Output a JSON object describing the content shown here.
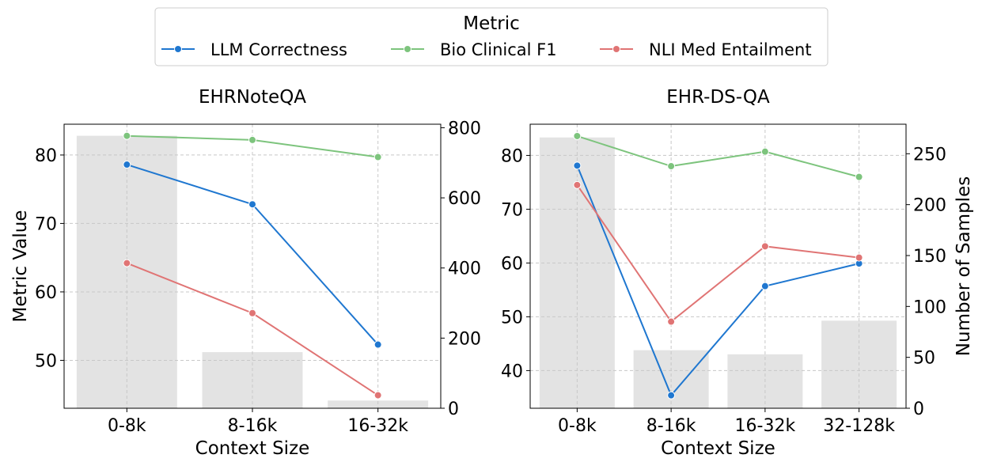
{
  "legend": {
    "title": "Metric",
    "entries": [
      {
        "name": "LLM Correctness",
        "color": "#1f77d0"
      },
      {
        "name": "Bio Clinical F1",
        "color": "#7dc47d"
      },
      {
        "name": "NLI Med Entailment",
        "color": "#e07474"
      }
    ]
  },
  "chart_data": [
    {
      "type": "line",
      "title": "EHRNoteQA",
      "xlabel": "Context Size",
      "ylabel": "Metric Value",
      "y2label": "",
      "categories": [
        "0-8k",
        "8-16k",
        "16-32k"
      ],
      "ylim": [
        43,
        84.5
      ],
      "yticks": [
        50,
        60,
        70,
        80
      ],
      "y2lim": [
        0,
        810
      ],
      "y2ticks": [
        0,
        200,
        400,
        600,
        800
      ],
      "bars": {
        "name": "Number of Samples",
        "color": "#e3e3e3",
        "values": [
          777,
          160,
          22
        ]
      },
      "series": [
        {
          "name": "LLM Correctness",
          "color": "#1f77d0",
          "values": [
            78.6,
            72.8,
            52.3
          ]
        },
        {
          "name": "Bio Clinical F1",
          "color": "#7dc47d",
          "values": [
            82.8,
            82.2,
            79.7
          ]
        },
        {
          "name": "NLI Med Entailment",
          "color": "#e07474",
          "values": [
            64.2,
            56.9,
            44.9
          ]
        }
      ]
    },
    {
      "type": "line",
      "title": "EHR-DS-QA",
      "xlabel": "Context Size",
      "ylabel": "",
      "y2label": "Number of Samples",
      "categories": [
        "0-8k",
        "8-16k",
        "16-32k",
        "32-128k"
      ],
      "ylim": [
        33,
        85.8
      ],
      "yticks": [
        40,
        50,
        60,
        70,
        80
      ],
      "y2lim": [
        0,
        279
      ],
      "y2ticks": [
        0,
        50,
        100,
        150,
        200,
        250
      ],
      "bars": {
        "name": "Number of Samples",
        "color": "#e3e3e3",
        "values": [
          266,
          57,
          53,
          86
        ]
      },
      "series": [
        {
          "name": "LLM Correctness",
          "color": "#1f77d0",
          "values": [
            78.1,
            35.4,
            55.7,
            59.9
          ]
        },
        {
          "name": "Bio Clinical F1",
          "color": "#7dc47d",
          "values": [
            83.6,
            78.0,
            80.7,
            76.0
          ]
        },
        {
          "name": "NLI Med Entailment",
          "color": "#e07474",
          "values": [
            74.5,
            49.1,
            63.1,
            61.0
          ]
        }
      ]
    }
  ]
}
